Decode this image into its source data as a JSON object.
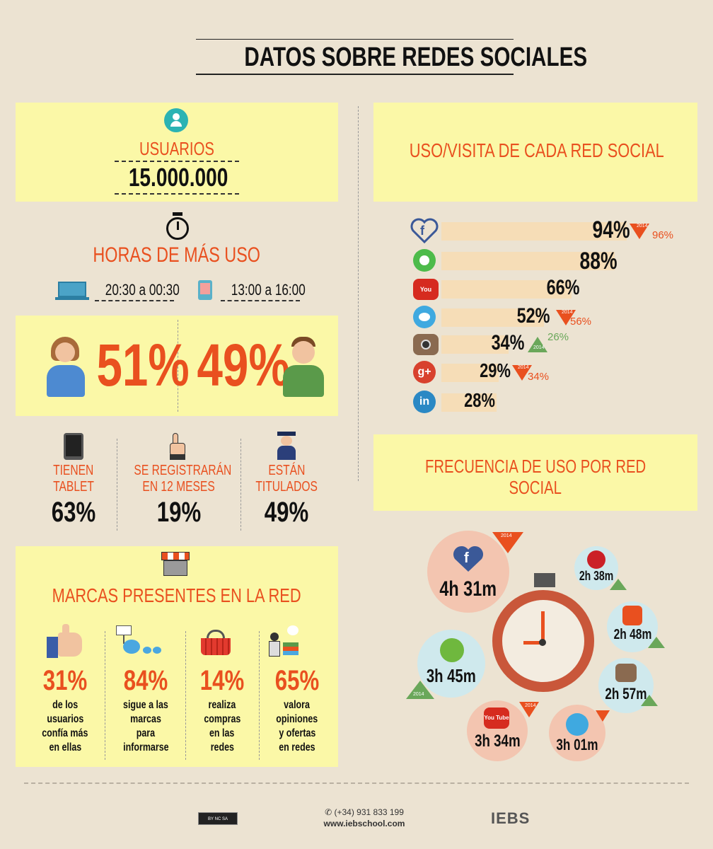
{
  "header": {
    "title": "DATOS SOBRE REDES SOCIALES"
  },
  "users": {
    "label": "USUARIOS",
    "value": "15.000.000"
  },
  "hours": {
    "title": "HORAS DE MÁS USO",
    "laptop": "20:30 a 00:30",
    "mobile": "13:00 a 16:00"
  },
  "gender": {
    "female": "51%",
    "male": "49%"
  },
  "stats": [
    {
      "label1": "TIENEN",
      "label2": "TABLET",
      "value": "63%"
    },
    {
      "label1": "SE REGISTRARÁN",
      "label2": "EN 12 MESES",
      "value": "19%"
    },
    {
      "label1": "ESTÁN",
      "label2": "TITULADOS",
      "value": "49%"
    }
  ],
  "brands": {
    "title": "MARCAS PRESENTES EN LA RED",
    "items": [
      {
        "value": "31%",
        "l1": "de los",
        "l2": "usuarios",
        "l3": "confía más",
        "l4": "en ellas"
      },
      {
        "value": "84%",
        "l1": "sigue a las",
        "l2": "marcas",
        "l3": "para",
        "l4": "informarse"
      },
      {
        "value": "14%",
        "l1": "realiza",
        "l2": "compras",
        "l3": "en las",
        "l4": "redes"
      },
      {
        "value": "65%",
        "l1": "valora",
        "l2": "opiniones",
        "l3": "y ofertas",
        "l4": "en redes"
      }
    ]
  },
  "usage": {
    "title": "USO/VISITA DE CADA RED SOCIAL",
    "year": "2014",
    "icons": {
      "facebook": "f",
      "youtube": "You Tube",
      "googleplus": "g+",
      "linkedin": "in"
    },
    "rows": [
      {
        "network": "facebook",
        "value": "94%",
        "change": "96%",
        "dir": "down"
      },
      {
        "network": "whatsapp",
        "value": "88%"
      },
      {
        "network": "youtube",
        "value": "66%"
      },
      {
        "network": "twitter",
        "value": "52%",
        "change": "56%",
        "dir": "down"
      },
      {
        "network": "instagram",
        "value": "34%",
        "change": "26%",
        "dir": "up"
      },
      {
        "network": "googleplus",
        "value": "29%",
        "change": "34%",
        "dir": "down"
      },
      {
        "network": "linkedin",
        "value": "28%"
      }
    ]
  },
  "frequency": {
    "title1": "FRECUENCIA DE USO POR RED",
    "title2": "SOCIAL",
    "facebook": "4h 31m",
    "spotify": "3h 45m",
    "youtube": "3h 34m",
    "twitter": "3h 01m",
    "pinterest": "2h 38m",
    "badoo": "2h 48m",
    "instagram": "2h 57m",
    "year": "2014",
    "icons": {
      "facebook": "f",
      "youtube": "You Tube"
    }
  },
  "chart_data": {
    "type": "bar",
    "title": "USO/VISITA DE CADA RED SOCIAL",
    "categories": [
      "Facebook",
      "WhatsApp",
      "YouTube",
      "Twitter",
      "Instagram",
      "Google+",
      "LinkedIn"
    ],
    "values": [
      94,
      88,
      66,
      52,
      34,
      29,
      28
    ]
  },
  "footer": {
    "phone": "(+34) 931 833 199",
    "web": "www.iebschool.com",
    "brand": "IEBS",
    "license": "BY NC SA"
  },
  "colors": {
    "panel": "#fbf8a7",
    "accent": "#e9501f",
    "up": "#6aa75a",
    "bar": "#f6ddb7"
  }
}
